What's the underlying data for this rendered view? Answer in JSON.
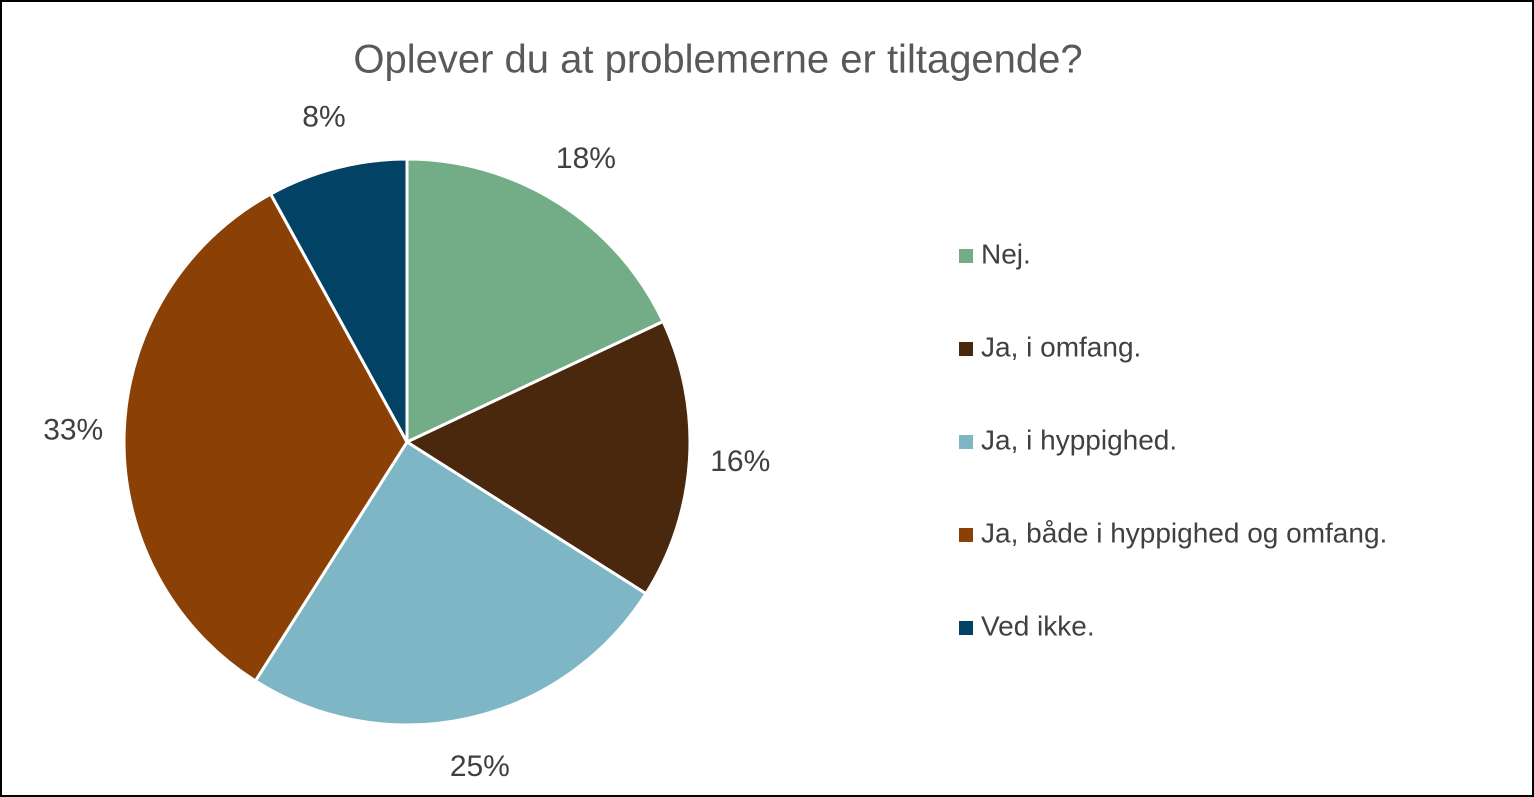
{
  "chart_data": {
    "type": "pie",
    "title": "Oplever du at problemerne er tiltagende?",
    "categories": [
      "Nej.",
      "Ja, i omfang.",
      "Ja, i hyppighed.",
      "Ja, både i hyppighed og omfang.",
      "Ved ikke."
    ],
    "values": [
      18,
      16,
      25,
      33,
      8
    ],
    "value_labels": [
      "18%",
      "16%",
      "25%",
      "33%",
      "8%"
    ],
    "colors": [
      "#72ad88",
      "#4a280e",
      "#7fb6c6",
      "#8b4106",
      "#024264"
    ],
    "legend": "right"
  }
}
